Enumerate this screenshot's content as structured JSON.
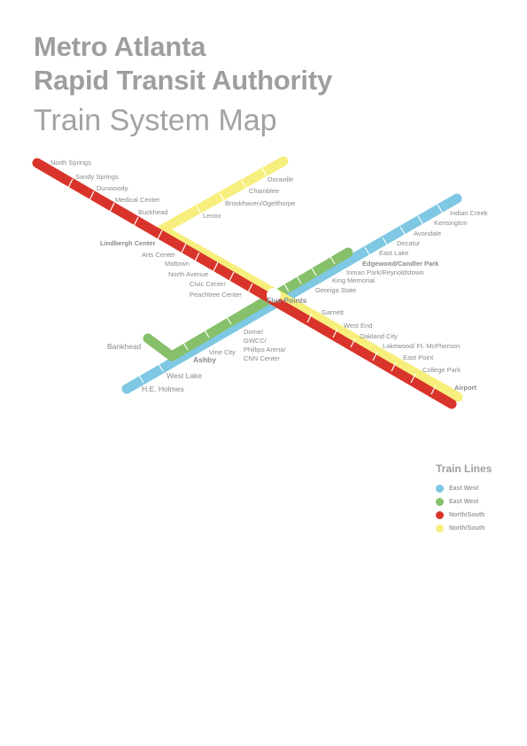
{
  "header": {
    "title_line1": "Metro Atlanta",
    "title_line2": "Rapid Transit Authority",
    "subtitle": "Train System Map"
  },
  "colors": {
    "blue": "#7ec8e3",
    "green": "#86c06a",
    "red": "#d9342b",
    "yellow": "#f7ef7d"
  },
  "hub": "Five Points",
  "stations": {
    "north_springs": "North Springs",
    "sandy_springs": "Sandy Springs",
    "dunwoody": "Dunwoody",
    "medical_center": "Medical Center",
    "buckhead": "Buckhead",
    "doraville": "Doraville",
    "chamblee": "Chamblee",
    "brookhaven": "Brookhaven/Ogelthorpe",
    "lenox": "Lenox",
    "lindbergh": "Lindbergh Center",
    "arts_center": "Arts Center",
    "midtown": "Midtown",
    "north_avenue": "North Avenue",
    "civic_center": "Civic Center",
    "peachtree_center": "Peachtree Center",
    "indian_creek": "Indian Creek",
    "kensington": "Kensington",
    "avondale": "Avondale",
    "decatur": "Decatur",
    "east_lake": "East Lake",
    "edgewood": "Edgewood/Candler Park",
    "inman_park": "Inman Park/Reynoldstown",
    "king_memorial": "King Memorial",
    "georgia_state": "Georiga State",
    "garnett": "Garnett",
    "west_end": "West End",
    "oakland_city": "Oakland City",
    "lakewood": "Lakewood/ Ft. McPherson",
    "east_point": "East Point",
    "college_park": "College Park",
    "airport": "Airport",
    "dome_1": "Dome/",
    "dome_2": "GWCC/",
    "dome_3": "Phillips Arena/",
    "dome_4": "CNN Center",
    "vine_city": "Vine City",
    "ashby": "Ashby",
    "bankhead": "Bankhead",
    "west_lake": "West Lake",
    "he_holmes": "H.E. Holmes"
  },
  "legend": {
    "title": "Train Lines",
    "items": [
      {
        "label": "East West",
        "color": "#7ec8e3"
      },
      {
        "label": "East West",
        "color": "#86c06a"
      },
      {
        "label": "North/South",
        "color": "#d9342b"
      },
      {
        "label": "North/South",
        "color": "#f7ef7d"
      }
    ]
  }
}
